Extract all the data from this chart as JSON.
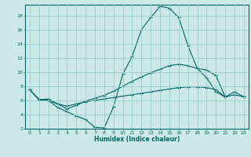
{
  "xlabel": "Humidex (Indice chaleur)",
  "bg_color": "#cce8e8",
  "grid_color": "#99cccc",
  "line_color": "#006666",
  "xlim": [
    -0.5,
    23.5
  ],
  "ylim": [
    2,
    19.5
  ],
  "xticks": [
    0,
    1,
    2,
    3,
    4,
    5,
    6,
    7,
    8,
    9,
    10,
    11,
    12,
    13,
    14,
    15,
    16,
    17,
    18,
    19,
    20,
    21,
    22,
    23
  ],
  "yticks": [
    2,
    4,
    6,
    8,
    10,
    12,
    14,
    16,
    18
  ],
  "line1_x": [
    0,
    1,
    2,
    3,
    4,
    5,
    6,
    7,
    8,
    9,
    10,
    11,
    12,
    13,
    14,
    15,
    16,
    17,
    18,
    19,
    20,
    21
  ],
  "line1_y": [
    7.5,
    6.1,
    6.0,
    5.0,
    4.4,
    3.8,
    3.3,
    2.2,
    2.1,
    5.1,
    9.7,
    12.2,
    16.0,
    17.7,
    19.3,
    19.0,
    17.7,
    13.7,
    10.5,
    9.2,
    7.2,
    6.5
  ],
  "line2_x": [
    0,
    1,
    2,
    3,
    4,
    5,
    6,
    7,
    8,
    9,
    10,
    11,
    12,
    13,
    14,
    15,
    16,
    17,
    18,
    19,
    20,
    21,
    22,
    23
  ],
  "line2_y": [
    7.5,
    6.1,
    6.2,
    5.5,
    4.8,
    5.3,
    5.9,
    6.3,
    6.7,
    7.3,
    8.0,
    8.7,
    9.3,
    9.9,
    10.4,
    10.9,
    11.1,
    10.9,
    10.5,
    10.3,
    9.5,
    6.5,
    7.2,
    6.5
  ],
  "line3_x": [
    0,
    1,
    2,
    3,
    4,
    5,
    6,
    7,
    8,
    9,
    10,
    11,
    12,
    13,
    14,
    15,
    16,
    17,
    18,
    19,
    20,
    21,
    22,
    23
  ],
  "line3_y": [
    7.5,
    6.1,
    6.0,
    5.5,
    5.2,
    5.5,
    5.8,
    6.0,
    6.2,
    6.4,
    6.6,
    6.8,
    7.0,
    7.2,
    7.4,
    7.6,
    7.8,
    7.9,
    7.9,
    7.8,
    7.5,
    6.5,
    6.8,
    6.5
  ]
}
